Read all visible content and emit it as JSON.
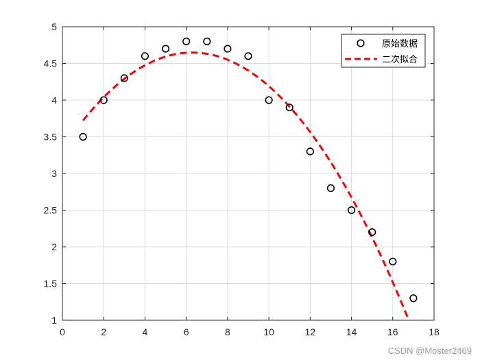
{
  "chart_data": {
    "type": "scatter",
    "xlim": [
      0,
      18
    ],
    "ylim": [
      1,
      5
    ],
    "xticks": [
      0,
      2,
      4,
      6,
      8,
      10,
      12,
      14,
      16,
      18
    ],
    "yticks": [
      1,
      1.5,
      2,
      2.5,
      3,
      3.5,
      4,
      4.5,
      5
    ],
    "grid": true,
    "legend_position": "top-right",
    "series": [
      {
        "name": "原始数据",
        "style": "markers",
        "marker": "circle",
        "color": "#000000",
        "x": [
          1,
          2,
          3,
          4,
          5,
          6,
          7,
          8,
          9,
          10,
          11,
          12,
          13,
          14,
          15,
          16,
          17
        ],
        "y": [
          3.5,
          4.0,
          4.3,
          4.6,
          4.7,
          4.8,
          4.8,
          4.7,
          4.6,
          4.0,
          3.9,
          3.3,
          2.8,
          2.5,
          2.2,
          1.8,
          1.3
        ]
      },
      {
        "name": "二次拟合",
        "style": "dashed-line",
        "color": "#ff0000",
        "x": [
          1,
          2,
          3,
          4,
          5,
          6,
          7,
          8,
          9,
          10,
          11,
          12,
          13,
          14,
          15,
          16,
          17
        ],
        "y": [
          3.76,
          4.04,
          4.27,
          4.45,
          4.57,
          4.63,
          4.63,
          4.56,
          4.42,
          4.21,
          3.93,
          3.57,
          3.15,
          2.67,
          2.12,
          1.5,
          0.85
        ]
      }
    ]
  },
  "watermark": "CSDN @Moster2469"
}
